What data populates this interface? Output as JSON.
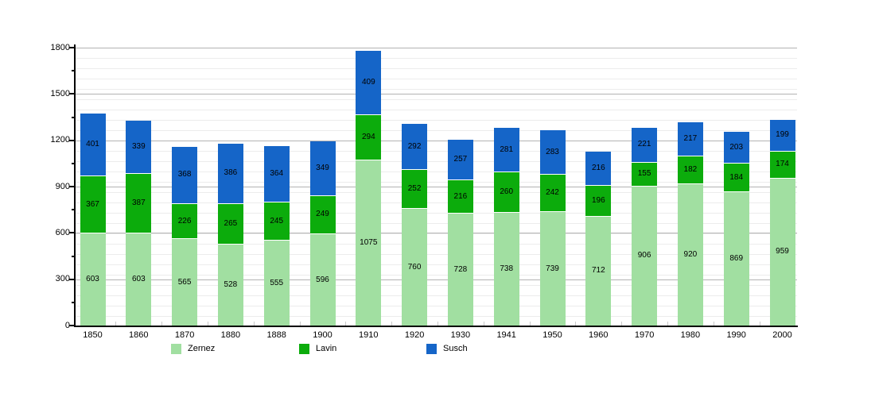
{
  "chart_data": {
    "type": "bar",
    "stacked": true,
    "title": "",
    "xlabel": "",
    "ylabel": "",
    "categories": [
      "1850",
      "1860",
      "1870",
      "1880",
      "1888",
      "1900",
      "1910",
      "1920",
      "1930",
      "1941",
      "1950",
      "1960",
      "1970",
      "1980",
      "1990",
      "2000"
    ],
    "series": [
      {
        "name": "Zernez",
        "color": "#a1dfa1",
        "values": [
          603,
          603,
          565,
          528,
          555,
          596,
          1075,
          760,
          728,
          738,
          739,
          712,
          906,
          920,
          869,
          959
        ]
      },
      {
        "name": "Lavin",
        "color": "#0cac0c",
        "values": [
          367,
          387,
          226,
          265,
          245,
          249,
          294,
          252,
          216,
          260,
          242,
          196,
          155,
          182,
          184,
          174
        ]
      },
      {
        "name": "Susch",
        "color": "#1565c8",
        "values": [
          401,
          339,
          368,
          386,
          364,
          349,
          409,
          292,
          257,
          281,
          283,
          216,
          221,
          217,
          203,
          199
        ]
      }
    ],
    "ylim": [
      0,
      1800
    ],
    "yticks": [
      0,
      300,
      600,
      900,
      1200,
      1500,
      1800
    ],
    "y_minor_tick_interval": 150,
    "grid": "horizontal",
    "legend_position": "bottom",
    "value_labels": "inside-segments"
  },
  "legend": {
    "items": [
      {
        "label": "Zernez",
        "color": "#a1dfa1"
      },
      {
        "label": "Lavin",
        "color": "#0cac0c"
      },
      {
        "label": "Susch",
        "color": "#1565c8"
      }
    ]
  },
  "colors": {
    "background": "#ffffff",
    "axis": "#000000",
    "grid_minor": "#ececec",
    "grid_major": "#b3b3b3",
    "text": "#000000"
  }
}
